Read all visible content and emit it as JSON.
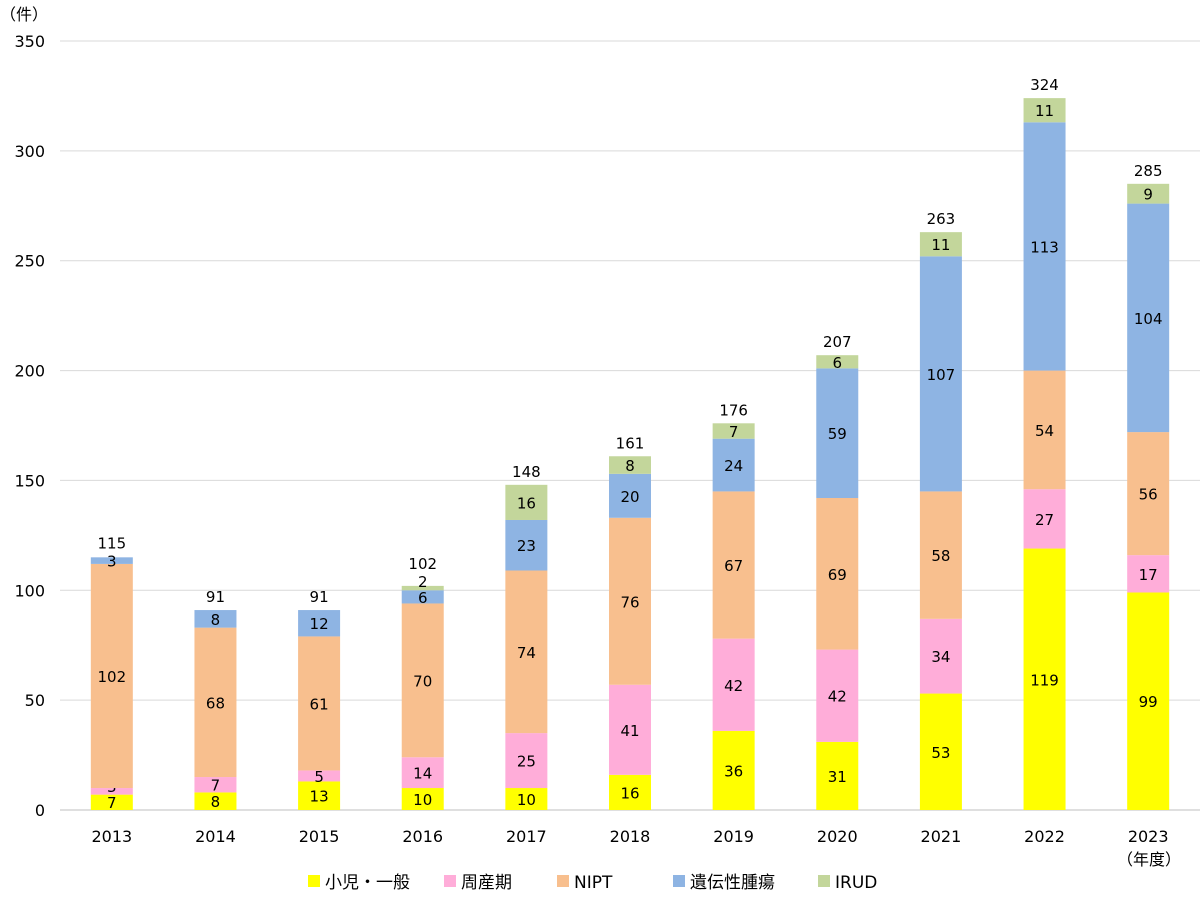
{
  "chart_data": {
    "type": "bar",
    "stacked": true,
    "y_unit_label": "（件）",
    "x_unit_label": "（年度）",
    "categories": [
      "2013",
      "2014",
      "2015",
      "2016",
      "2017",
      "2018",
      "2019",
      "2020",
      "2021",
      "2022",
      "2023"
    ],
    "series": [
      {
        "name": "小児・一般",
        "color": "#FFFF00",
        "values": [
          7,
          8,
          13,
          10,
          10,
          16,
          36,
          31,
          53,
          119,
          99
        ]
      },
      {
        "name": "周産期",
        "color": "#FFADD9",
        "values": [
          3,
          7,
          5,
          14,
          25,
          41,
          42,
          42,
          34,
          27,
          17
        ]
      },
      {
        "name": "NIPT",
        "color": "#F8BF8E",
        "values": [
          102,
          68,
          61,
          70,
          74,
          76,
          67,
          69,
          58,
          54,
          56
        ]
      },
      {
        "name": "遺伝性腫瘍",
        "color": "#8EB4E3",
        "values": [
          3,
          8,
          12,
          6,
          23,
          20,
          24,
          59,
          107,
          113,
          104
        ]
      },
      {
        "name": "IRUD",
        "color": "#C3D69B",
        "values": [
          0,
          0,
          0,
          2,
          16,
          8,
          7,
          6,
          11,
          11,
          9
        ]
      }
    ],
    "totals": [
      115,
      91,
      91,
      102,
      148,
      161,
      176,
      207,
      263,
      324,
      285
    ],
    "ylim": [
      0,
      350
    ],
    "yticks": [
      0,
      50,
      100,
      150,
      200,
      250,
      300,
      350
    ],
    "grid": true,
    "legend": "bottom"
  }
}
